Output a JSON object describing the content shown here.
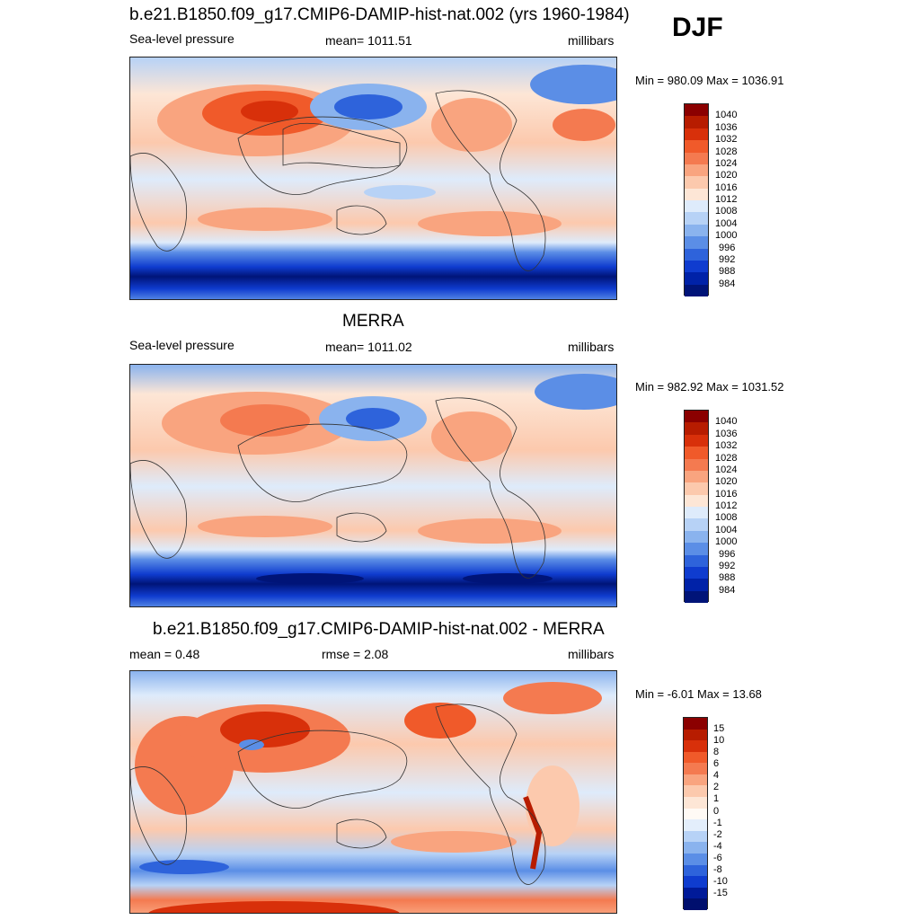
{
  "season": "DJF",
  "colors": {
    "abs": [
      "#8b0000",
      "#b71c00",
      "#d8300a",
      "#f05a2a",
      "#f47a50",
      "#f9a47f",
      "#fcc9ad",
      "#fde6d6",
      "#deebfb",
      "#b7d2f6",
      "#8ab3ee",
      "#5b8ee6",
      "#2e63db",
      "#0f3ccf",
      "#0022a8",
      "#001478"
    ],
    "diff": [
      "#8b0000",
      "#b71c00",
      "#d8300a",
      "#f05a2a",
      "#f47a50",
      "#f9a47f",
      "#fcc9ad",
      "#fde6d6",
      "#fffaf5",
      "#e3eefb",
      "#b7d2f6",
      "#8ab3ee",
      "#5b8ee6",
      "#2e63db",
      "#0f3ccf",
      "#001a99",
      "#000f6e"
    ]
  },
  "panels": [
    {
      "title": "b.e21.B1850.f09_g17.CMIP6-DAMIP-hist-nat.002 (yrs 1960-1984)",
      "left_label": "Sea-level pressure",
      "center_label": "mean= 1011.51",
      "right_label": "millibars",
      "minmax": "Min = 980.09 Max = 1036.91",
      "colorbar_labels": [
        "1040",
        "1036",
        "1032",
        "1028",
        "1024",
        "1020",
        "1016",
        "1012",
        "1008",
        "1004",
        "1000",
        "996",
        "992",
        "988",
        "984"
      ]
    },
    {
      "title": "MERRA",
      "left_label": "Sea-level pressure",
      "center_label": "mean= 1011.02",
      "right_label": "millibars",
      "minmax": "Min = 982.92 Max = 1031.52",
      "colorbar_labels": [
        "1040",
        "1036",
        "1032",
        "1028",
        "1024",
        "1020",
        "1016",
        "1012",
        "1008",
        "1004",
        "1000",
        "996",
        "992",
        "988",
        "984"
      ]
    },
    {
      "title": "b.e21.B1850.f09_g17.CMIP6-DAMIP-hist-nat.002 - MERRA",
      "left_label": "mean =   0.48",
      "center_label": "rmse =   2.08",
      "right_label": "millibars",
      "minmax": "Min =  -6.01 Max =  13.68",
      "colorbar_labels": [
        "15",
        "10",
        "8",
        "6",
        "4",
        "2",
        "1",
        "0",
        "-1",
        "-2",
        "-4",
        "-6",
        "-8",
        "-10",
        "-15"
      ]
    }
  ]
}
